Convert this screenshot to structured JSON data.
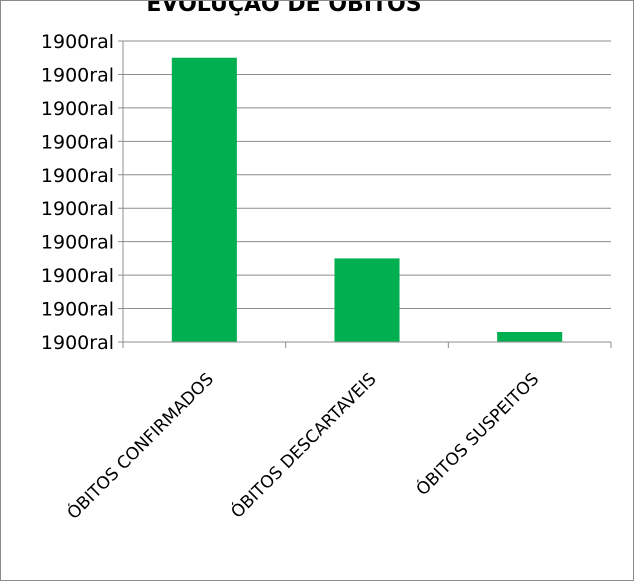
{
  "chart_data": {
    "type": "bar",
    "title": "EVOLUÇÃO DE ÓBITOS",
    "categories": [
      "ÓBITOS  CONFIRMADOS",
      "ÓBITOS DESCARTAVEIS",
      "ÓBITOS SUSPEITOS"
    ],
    "values": [
      85,
      25,
      3
    ],
    "ylim": [
      0,
      90
    ],
    "yticks": [
      0,
      10,
      20,
      30,
      40,
      50,
      60,
      70,
      80,
      90
    ],
    "ytick_labels": [
      "1900ral",
      "1900ral",
      "1900ral",
      "1900ral",
      "1900ral",
      "1900ral",
      "1900ral",
      "1900ral",
      "1900ral",
      "1900ral"
    ],
    "xlabel": "",
    "ylabel": "",
    "grid": true,
    "legend": "none",
    "bar_color": "#00B050"
  }
}
